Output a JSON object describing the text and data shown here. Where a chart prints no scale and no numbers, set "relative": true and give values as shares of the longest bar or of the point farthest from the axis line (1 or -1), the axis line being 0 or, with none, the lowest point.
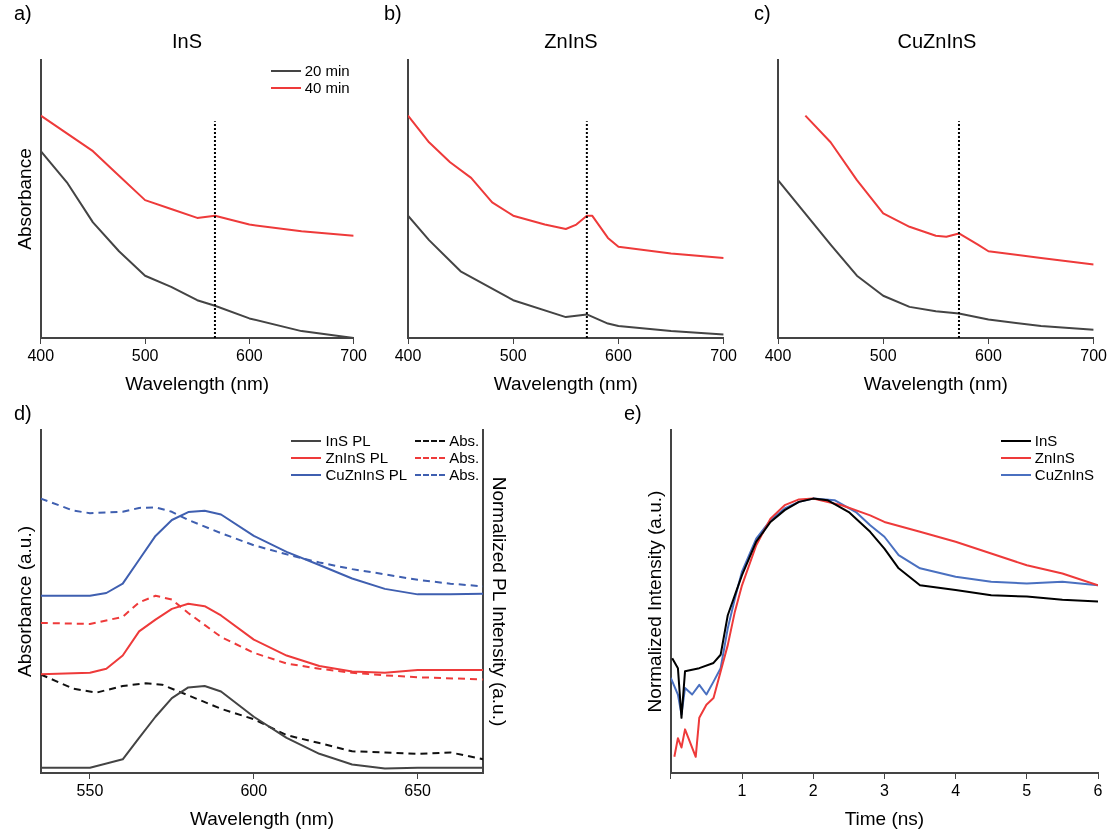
{
  "chart_data": [
    {
      "type": "line",
      "title": "InS",
      "xlabel": "Wavelength (nm)",
      "ylabel": "Absorbance",
      "annotations": [
        "a)"
      ],
      "relative": true,
      "xlim": [
        400,
        700
      ],
      "xticks": [
        400,
        500,
        600,
        700
      ],
      "legend": "top right",
      "marker": "none",
      "ref_lines": [
        {
          "axis": "x",
          "value": 567,
          "color": "#000000",
          "line_style": "dotted"
        }
      ],
      "series": [
        {
          "name": "20 min",
          "color": "#444444",
          "x": [
            400,
            425,
            450,
            475,
            500,
            525,
            550,
            567,
            600,
            650,
            700
          ],
          "values": [
            0.84,
            0.7,
            0.52,
            0.39,
            0.28,
            0.23,
            0.17,
            0.145,
            0.088,
            0.031,
            0
          ]
        },
        {
          "name": "40 min",
          "color": "#ee3a3a",
          "x": [
            400,
            425,
            450,
            475,
            500,
            525,
            550,
            567,
            600,
            650,
            700
          ],
          "values": [
            1,
            0.92,
            0.84,
            0.73,
            0.62,
            0.58,
            0.54,
            0.55,
            0.51,
            0.48,
            0.46
          ]
        }
      ]
    },
    {
      "type": "line",
      "title": "ZnInS",
      "xlabel": "Wavelength (nm)",
      "annotations": [
        "b)"
      ],
      "relative": true,
      "xlim": [
        400,
        700
      ],
      "xticks": [
        400,
        500,
        600,
        700
      ],
      "marker": "none",
      "ref_lines": [
        {
          "axis": "x",
          "value": 570,
          "color": "#000000",
          "line_style": "dotted"
        }
      ],
      "series": [
        {
          "color": "#444444",
          "x": [
            400,
            420,
            450,
            500,
            550,
            570,
            590,
            600,
            650,
            700
          ],
          "values": [
            0.55,
            0.44,
            0.3,
            0.17,
            0.094,
            0.106,
            0.065,
            0.054,
            0.031,
            0.016
          ]
        },
        {
          "color": "#ee3a3a",
          "x": [
            400,
            420,
            440,
            460,
            480,
            500,
            530,
            550,
            560,
            570,
            575,
            590,
            600,
            650,
            700
          ],
          "values": [
            1,
            0.88,
            0.79,
            0.72,
            0.61,
            0.55,
            0.51,
            0.49,
            0.51,
            0.55,
            0.55,
            0.45,
            0.41,
            0.38,
            0.36
          ]
        }
      ]
    },
    {
      "type": "line",
      "title": "CuZnInS",
      "xlabel": "Wavelength (nm)",
      "annotations": [
        "c)"
      ],
      "relative": true,
      "xlim": [
        400,
        700
      ],
      "xticks": [
        400,
        500,
        600,
        700
      ],
      "marker": "none",
      "ref_lines": [
        {
          "axis": "x",
          "value": 572,
          "color": "#000000",
          "line_style": "dotted"
        }
      ],
      "series": [
        {
          "color": "#444444",
          "x": [
            400,
            450,
            475,
            500,
            525,
            550,
            572,
            600,
            650,
            700
          ],
          "values": [
            0.71,
            0.42,
            0.28,
            0.19,
            0.14,
            0.12,
            0.11,
            0.083,
            0.054,
            0.037
          ]
        },
        {
          "color": "#ee3a3a",
          "x": [
            426,
            450,
            475,
            500,
            525,
            550,
            560,
            572,
            590,
            600,
            650,
            700
          ],
          "values": [
            1,
            0.88,
            0.71,
            0.56,
            0.5,
            0.46,
            0.455,
            0.47,
            0.42,
            0.39,
            0.36,
            0.33
          ]
        }
      ]
    },
    {
      "type": "line",
      "xlabel": "Wavelength (nm)",
      "ylabel": "Absorbance (a.u.)",
      "y2label": "Normalized PL Intensity (a.u.)",
      "annotations": [
        "d)"
      ],
      "relative": true,
      "xlim": [
        535,
        670
      ],
      "xticks": [
        550,
        600,
        650
      ],
      "legend": "top right",
      "marker": "none",
      "series": [
        {
          "name": "InS PL",
          "color": "#444444",
          "x": [
            535,
            550,
            560,
            565,
            570,
            575,
            580,
            585,
            590,
            600,
            610,
            620,
            630,
            640,
            650,
            670
          ],
          "values": [
            0.019,
            0.019,
            0.05,
            0.128,
            0.205,
            0.273,
            0.312,
            0.317,
            0.297,
            0.205,
            0.128,
            0.07,
            0.031,
            0.016,
            0.019,
            0.019
          ]
        },
        {
          "name": "ZnInS PL",
          "color": "#ee3a3a",
          "x": [
            535,
            550,
            555,
            560,
            565,
            570,
            575,
            580,
            585,
            590,
            600,
            610,
            620,
            630,
            640,
            650,
            670
          ],
          "values": [
            0.36,
            0.365,
            0.38,
            0.428,
            0.516,
            0.559,
            0.598,
            0.617,
            0.608,
            0.574,
            0.486,
            0.428,
            0.39,
            0.37,
            0.365,
            0.375,
            0.375
          ]
        },
        {
          "name": "CuZnInS PL",
          "color": "#3f5fb0",
          "x": [
            535,
            550,
            555,
            560,
            565,
            570,
            575,
            580,
            585,
            590,
            600,
            610,
            620,
            630,
            640,
            650,
            660,
            670
          ],
          "values": [
            0.646,
            0.646,
            0.656,
            0.69,
            0.777,
            0.864,
            0.922,
            0.951,
            0.956,
            0.942,
            0.864,
            0.806,
            0.758,
            0.709,
            0.671,
            0.651,
            0.651,
            0.653
          ]
        },
        {
          "name": "Abs.",
          "color": "#111111",
          "line_style": "dashed",
          "x": [
            535,
            545,
            552,
            560,
            567,
            572,
            580,
            590,
            600,
            610,
            620,
            630,
            640,
            650,
            660,
            670
          ],
          "values": [
            0.359,
            0.307,
            0.293,
            0.317,
            0.327,
            0.322,
            0.283,
            0.234,
            0.196,
            0.138,
            0.109,
            0.079,
            0.075,
            0.07,
            0.075,
            0.05
          ]
        },
        {
          "name": "Abs.",
          "color": "#ee3a3a",
          "line_style": "dashed",
          "x": [
            535,
            550,
            560,
            565,
            570,
            575,
            580,
            590,
            600,
            610,
            620,
            630,
            640,
            650,
            670
          ],
          "values": [
            0.547,
            0.543,
            0.569,
            0.622,
            0.646,
            0.632,
            0.583,
            0.496,
            0.438,
            0.399,
            0.38,
            0.365,
            0.356,
            0.349,
            0.341
          ]
        },
        {
          "name": "Abs.",
          "color": "#3f5fb0",
          "line_style": "dashed",
          "x": [
            535,
            545,
            550,
            560,
            565,
            570,
            575,
            580,
            590,
            600,
            610,
            620,
            630,
            640,
            650,
            660,
            670
          ],
          "values": [
            1,
            0.956,
            0.947,
            0.952,
            0.966,
            0.968,
            0.952,
            0.922,
            0.874,
            0.83,
            0.797,
            0.767,
            0.743,
            0.724,
            0.704,
            0.69,
            0.68
          ]
        }
      ]
    },
    {
      "type": "line",
      "xlabel": "Time (ns)",
      "ylabel": "Normalized Intensity (a.u.)",
      "annotations": [
        "e)"
      ],
      "relative": true,
      "xlim": [
        0,
        6
      ],
      "xticks": [
        {
          "value": 0,
          "label": null
        },
        1,
        2,
        3,
        4,
        5,
        6
      ],
      "legend": "top right",
      "marker": "none",
      "series": [
        {
          "name": "InS",
          "color": "#000000",
          "x": [
            0.02,
            0.1,
            0.15,
            0.2,
            0.4,
            0.6,
            0.7,
            0.8,
            0.9,
            1.0,
            1.2,
            1.4,
            1.6,
            1.8,
            2.0,
            2.2,
            2.5,
            2.8,
            3.0,
            3.2,
            3.5,
            4.0,
            4.5,
            5.0,
            5.5,
            6.0
          ],
          "values": [
            0.418,
            0.382,
            0.201,
            0.371,
            0.382,
            0.401,
            0.431,
            0.575,
            0.648,
            0.721,
            0.843,
            0.915,
            0.958,
            0.988,
            1,
            0.994,
            0.951,
            0.879,
            0.818,
            0.746,
            0.684,
            0.667,
            0.648,
            0.643,
            0.631,
            0.625
          ]
        },
        {
          "name": "ZnInS",
          "color": "#ee3a3a",
          "x": [
            0.05,
            0.1,
            0.15,
            0.2,
            0.35,
            0.4,
            0.5,
            0.6,
            0.7,
            0.8,
            0.9,
            1.0,
            1.2,
            1.4,
            1.6,
            1.8,
            2.0,
            2.4,
            2.8,
            3.0,
            3.5,
            4.0,
            4.5,
            5.0,
            5.5,
            6.0
          ],
          "values": [
            0.059,
            0.127,
            0.093,
            0.159,
            0.059,
            0.201,
            0.249,
            0.273,
            0.37,
            0.466,
            0.588,
            0.684,
            0.83,
            0.927,
            0.976,
            0.997,
            1,
            0.976,
            0.939,
            0.915,
            0.879,
            0.843,
            0.8,
            0.757,
            0.727,
            0.684
          ]
        },
        {
          "name": "CuZnInS",
          "color": "#4a70c0",
          "x": [
            0.0,
            0.1,
            0.15,
            0.2,
            0.3,
            0.4,
            0.5,
            0.6,
            0.7,
            0.8,
            0.9,
            1.0,
            1.2,
            1.4,
            1.6,
            1.8,
            2.0,
            2.3,
            2.6,
            2.8,
            3.0,
            3.2,
            3.5,
            4.0,
            4.5,
            5.0,
            5.5,
            6.0
          ],
          "values": [
            0.347,
            0.286,
            0.214,
            0.31,
            0.286,
            0.321,
            0.286,
            0.333,
            0.382,
            0.527,
            0.636,
            0.734,
            0.854,
            0.921,
            0.964,
            0.988,
            1,
            0.994,
            0.951,
            0.903,
            0.861,
            0.794,
            0.746,
            0.715,
            0.697,
            0.691,
            0.697,
            0.684
          ]
        }
      ]
    }
  ]
}
